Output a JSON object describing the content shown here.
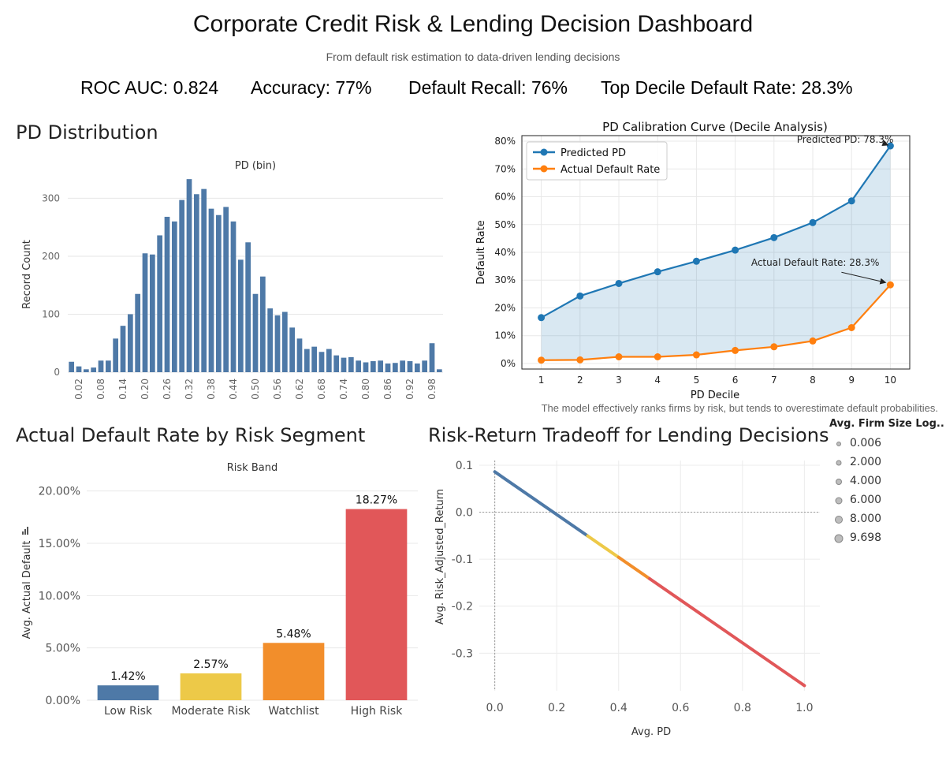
{
  "header": {
    "title": "Corporate Credit Risk & Lending Decision Dashboard",
    "subtitle": "From default risk estimation to data-driven lending decisions"
  },
  "kpis": [
    {
      "label": "ROC AUC: 0.824"
    },
    {
      "label": "Accuracy: 77%"
    },
    {
      "label": "Default Recall: 76%"
    },
    {
      "label": "Top Decile Default Rate: 28.3%"
    }
  ],
  "sections": {
    "pd_distribution": "PD Distribution",
    "segment": "Actual Default Rate by Risk Segment",
    "tradeoff": "Risk-Return Tradeoff for Lending Decisions"
  },
  "colors": {
    "tableau_blue": "#4e79a7",
    "mpl_blue": "#1f77b4",
    "mpl_orange": "#ff7f0e",
    "yellow": "#edc948",
    "orange": "#f28e2b",
    "red": "#e15759"
  },
  "calibration_note": "The model effectively ranks firms by risk, but tends to overestimate default probabilities.",
  "size_legend": {
    "title": "Avg. Firm Size Log..",
    "items": [
      "0.006",
      "2.000",
      "4.000",
      "6.000",
      "8.000",
      "9.698"
    ]
  },
  "chart_data": [
    {
      "id": "pd_histogram",
      "type": "bar",
      "title": "PD (bin)",
      "ylabel": "Record Count",
      "xlabel": "",
      "ylim": [
        0,
        340
      ],
      "yticks": [
        0,
        100,
        200,
        300
      ],
      "x": [
        0.0,
        0.02,
        0.04,
        0.06,
        0.08,
        0.1,
        0.12,
        0.14,
        0.16,
        0.18,
        0.2,
        0.22,
        0.24,
        0.26,
        0.28,
        0.3,
        0.32,
        0.34,
        0.36,
        0.38,
        0.4,
        0.42,
        0.44,
        0.46,
        0.48,
        0.5,
        0.52,
        0.54,
        0.56,
        0.58,
        0.6,
        0.62,
        0.64,
        0.66,
        0.68,
        0.7,
        0.72,
        0.74,
        0.76,
        0.78,
        0.8,
        0.82,
        0.84,
        0.86,
        0.88,
        0.9,
        0.92,
        0.94,
        0.96,
        0.98,
        1.0
      ],
      "values": [
        18,
        10,
        5,
        8,
        20,
        20,
        58,
        80,
        100,
        135,
        205,
        203,
        236,
        268,
        260,
        297,
        333,
        307,
        316,
        282,
        271,
        285,
        260,
        194,
        224,
        135,
        165,
        110,
        98,
        104,
        77,
        58,
        40,
        44,
        35,
        40,
        29,
        25,
        26,
        20,
        17,
        19,
        20,
        15,
        16,
        20,
        19,
        15,
        20,
        50,
        5
      ],
      "tick_labels": [
        "0.02",
        "0.08",
        "0.14",
        "0.20",
        "0.26",
        "0.32",
        "0.38",
        "0.44",
        "0.50",
        "0.56",
        "0.62",
        "0.68",
        "0.74",
        "0.80",
        "0.86",
        "0.92",
        "0.98"
      ],
      "tick_values": [
        0.02,
        0.08,
        0.14,
        0.2,
        0.26,
        0.32,
        0.38,
        0.44,
        0.5,
        0.56,
        0.62,
        0.68,
        0.74,
        0.8,
        0.86,
        0.92,
        0.98
      ],
      "grid": true
    },
    {
      "id": "calibration_curve",
      "type": "line",
      "title": "PD Calibration Curve (Decile Analysis)",
      "xlabel": "PD Decile",
      "ylabel": "Default Rate",
      "xlim": [
        0.5,
        10.5
      ],
      "ylim": [
        -2,
        82
      ],
      "x": [
        1,
        2,
        3,
        4,
        5,
        6,
        7,
        8,
        9,
        10
      ],
      "yticks": [
        "0%",
        "10%",
        "20%",
        "30%",
        "40%",
        "50%",
        "60%",
        "70%",
        "80%"
      ],
      "ytick_values": [
        0,
        10,
        20,
        30,
        40,
        50,
        60,
        70,
        80
      ],
      "series": [
        {
          "name": "Predicted PD",
          "values": [
            16.5,
            24.3,
            28.8,
            33.0,
            36.8,
            40.8,
            45.3,
            50.7,
            58.5,
            78.3
          ]
        },
        {
          "name": "Actual Default Rate",
          "values": [
            1.2,
            1.3,
            2.4,
            2.4,
            3.1,
            4.7,
            6.0,
            8.1,
            12.9,
            28.3
          ]
        }
      ],
      "annotations": [
        {
          "text": "Predicted PD: 78.3%",
          "x": 10,
          "y": 78.3
        },
        {
          "text": "Actual Default Rate: 28.3%",
          "x": 10,
          "y": 28.3
        }
      ],
      "legend": "top-left",
      "grid": true,
      "fill_between": true
    },
    {
      "id": "risk_segment",
      "type": "bar",
      "title": "Risk Band",
      "ylabel": "Avg. Actual Default",
      "xlabel": "",
      "categories": [
        "Low Risk",
        "Moderate Risk",
        "Watchlist",
        "High Risk"
      ],
      "values": [
        1.42,
        2.57,
        5.48,
        18.27
      ],
      "value_labels": [
        "1.42%",
        "2.57%",
        "5.48%",
        "18.27%"
      ],
      "yticks": [
        "0.00%",
        "5.00%",
        "10.00%",
        "15.00%",
        "20.00%"
      ],
      "ytick_values": [
        0,
        5,
        10,
        15,
        20
      ],
      "ylim": [
        0,
        20.5
      ],
      "grid": true
    },
    {
      "id": "risk_return",
      "type": "scatter",
      "title": "",
      "xlabel": "Avg. PD",
      "ylabel": "Avg. Risk_Adjusted_Return",
      "xlim": [
        -0.05,
        1.05
      ],
      "ylim": [
        -0.38,
        0.11
      ],
      "xticks": [
        "0.0",
        "0.2",
        "0.4",
        "0.6",
        "0.8",
        "1.0"
      ],
      "xtick_values": [
        0.0,
        0.2,
        0.4,
        0.6,
        0.8,
        1.0
      ],
      "yticks": [
        "0.1",
        "0.0",
        "-0.1",
        "-0.2",
        "-0.3"
      ],
      "ytick_values": [
        0.1,
        0.0,
        -0.1,
        -0.2,
        -0.3
      ],
      "line": {
        "intercept": 0.086,
        "slope": -0.455
      },
      "segments": [
        {
          "x_start": 0.0,
          "x_end": 0.3,
          "color": "#4e79a7"
        },
        {
          "x_start": 0.3,
          "x_end": 0.4,
          "color": "#edc948"
        },
        {
          "x_start": 0.4,
          "x_end": 0.5,
          "color": "#f28e2b"
        },
        {
          "x_start": 0.5,
          "x_end": 1.0,
          "color": "#e15759"
        }
      ],
      "grid": true
    }
  ]
}
